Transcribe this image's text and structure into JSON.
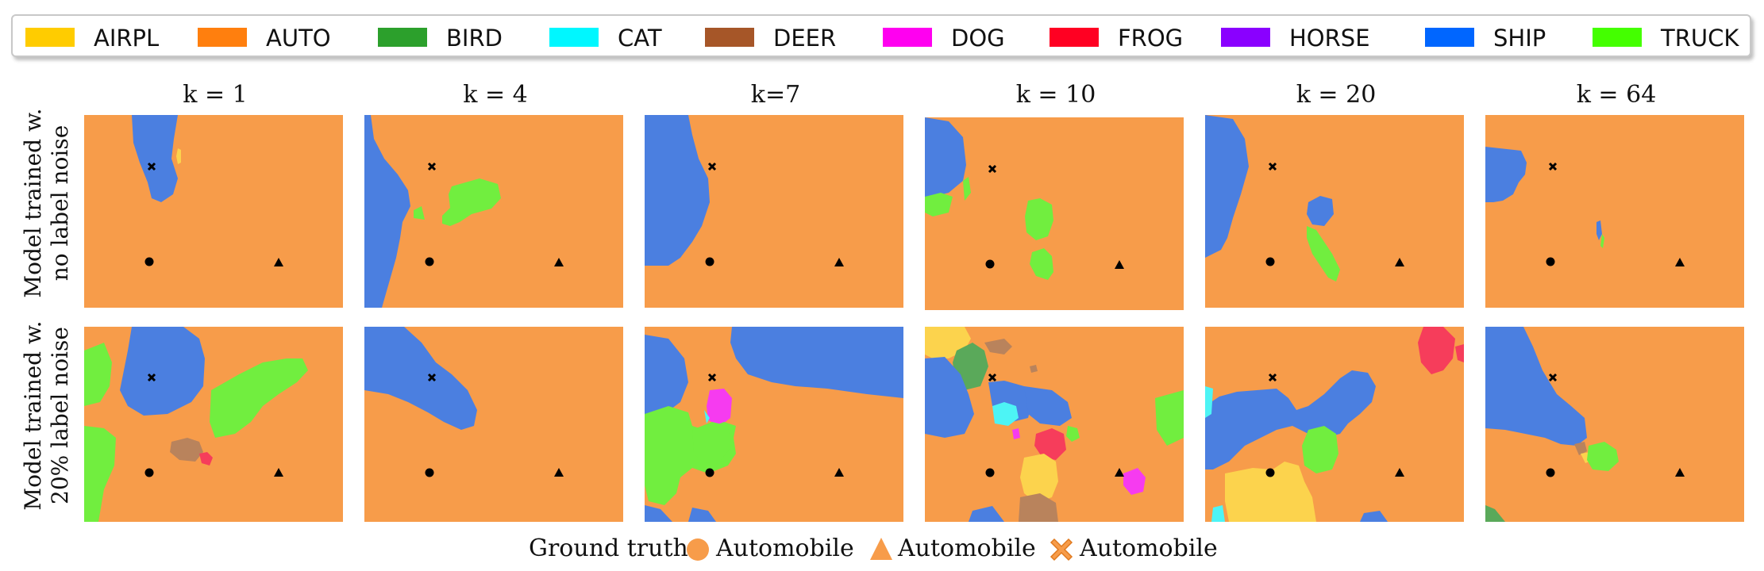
{
  "legend": [
    {
      "label": "AIRPL",
      "color": "#ffcc00"
    },
    {
      "label": "AUTO",
      "color": "#ff7f0e"
    },
    {
      "label": "BIRD",
      "color": "#2ca02c"
    },
    {
      "label": "CAT",
      "color": "#00f7ff"
    },
    {
      "label": "DEER",
      "color": "#a65628"
    },
    {
      "label": "DOG",
      "color": "#ff00f0"
    },
    {
      "label": "FROG",
      "color": "#ff0022"
    },
    {
      "label": "HORSE",
      "color": "#8a00ff"
    },
    {
      "label": "SHIP",
      "color": "#0066ff"
    },
    {
      "label": "TRUCK",
      "color": "#44ff00"
    }
  ],
  "columns": [
    "k = 1",
    "k = 4",
    "k=7",
    "k = 10",
    "k = 20",
    "k = 64"
  ],
  "rows": [
    {
      "line1": "Model trained w.",
      "line2": "no label noise"
    },
    {
      "line1": "Model trained w.",
      "line2": "20%  label noise"
    }
  ],
  "ground_truth": {
    "label": "Ground truth:",
    "items": [
      {
        "shape": "circle-icon",
        "label": "Automobile"
      },
      {
        "shape": "triangle-icon",
        "label": "Automobile"
      },
      {
        "shape": "cross-icon",
        "label": "Automobile"
      }
    ]
  },
  "colors": {
    "auto": "#f79c4a",
    "ship": "#4b7fe0",
    "truck": "#71ee3f",
    "airpl": "#fcd34d",
    "bird": "#5aa95a",
    "cat": "#4df4f5",
    "deer": "#b9835c",
    "dog": "#f63bf0",
    "frog": "#f63d5b",
    "marker": "#000000"
  }
}
